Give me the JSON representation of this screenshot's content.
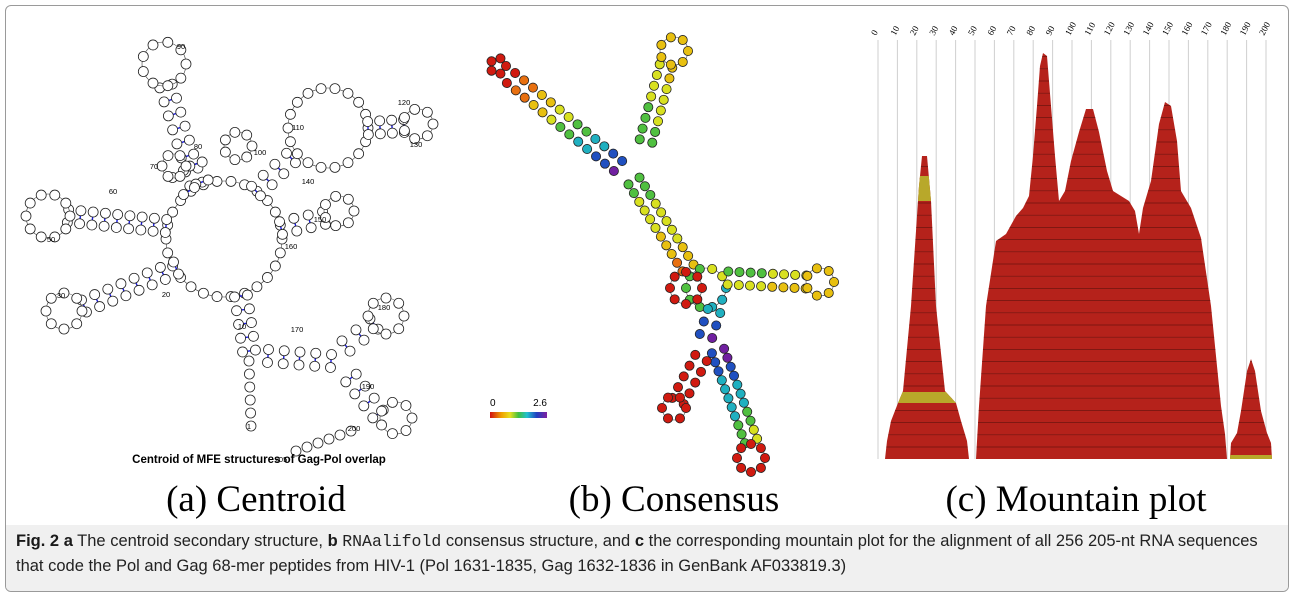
{
  "panel_a": {
    "title": "Centroid of MFE structures of Gag-Pol overlap",
    "position_labels": [
      "90",
      "120",
      "110",
      "130",
      "80",
      "100",
      "70",
      "140",
      "60",
      "150",
      "50",
      "160",
      "20",
      "30",
      "10",
      "170",
      "180",
      "190",
      "200",
      "1",
      "205"
    ]
  },
  "panel_b": {
    "scale_labels": [
      "0",
      "2.6"
    ]
  },
  "panel_c": {
    "xticks": [
      0,
      10,
      20,
      30,
      40,
      50,
      60,
      70,
      80,
      90,
      100,
      110,
      120,
      130,
      140,
      150,
      160,
      170,
      180,
      190,
      200
    ],
    "xlim": [
      0,
      200
    ]
  },
  "subcaptions": [
    "(a) Centroid",
    "(b) Consensus",
    "(c) Mountain plot"
  ],
  "caption": {
    "label": "Fig. 2",
    "a": "a",
    "text_a": "The centroid secondary structure,",
    "b": "b",
    "code": "RNAalifold",
    "text_b": "consensus structure, and",
    "c": "c",
    "text_c": "the corresponding mountain plot for the alignment of all 256 205-nt RNA sequences that code the Pol and Gag 68-mer peptides from HIV-1 (Pol 1631-1835, Gag 1632-1836 in GenBank AF033819.3)"
  }
}
